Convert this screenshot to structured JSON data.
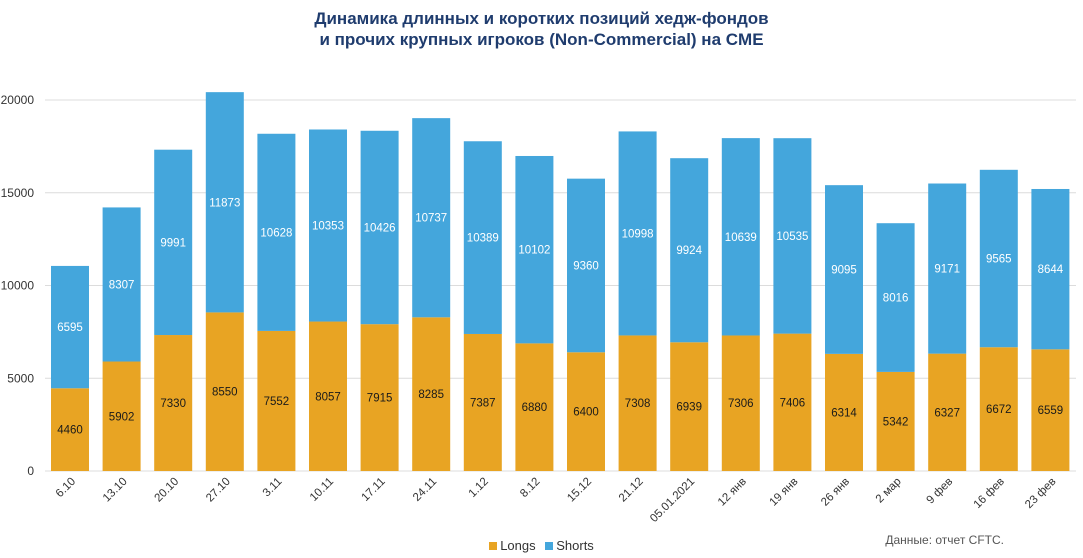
{
  "title_line1": "Динамика длинных и коротких позиций хедж-фондов",
  "title_line2": "и прочих крупных игроков (Non-Commercial) на CME",
  "source_note": "Данные: отчет CFTC.",
  "colors": {
    "longs": "#e8a423",
    "shorts": "#44a6dc",
    "grid": "#dcdcdc"
  },
  "chart_data": {
    "type": "bar",
    "stacked": true,
    "categories": [
      "6.10",
      "13.10",
      "20.10",
      "27.10",
      "3.11",
      "10.11",
      "17.11",
      "24.11",
      "1.12",
      "8.12",
      "15.12",
      "21.12",
      "05.01.2021",
      "12 янв",
      "19 янв",
      "26 янв",
      "2 мар",
      "9 фев",
      "16 фев",
      "23 фев"
    ],
    "series": [
      {
        "name": "Longs",
        "values": [
          4460,
          5902,
          7330,
          8550,
          7552,
          8057,
          7915,
          8285,
          7387,
          6880,
          6400,
          7308,
          6939,
          7306,
          7406,
          6314,
          5342,
          6327,
          6672,
          6559
        ]
      },
      {
        "name": "Shorts",
        "values": [
          6595,
          8307,
          9991,
          11873,
          10628,
          10353,
          10426,
          10737,
          10389,
          10102,
          9360,
          10998,
          9924,
          10639,
          10535,
          9095,
          8016,
          9171,
          9565,
          8644
        ]
      }
    ],
    "yticks": [
      0,
      5000,
      10000,
      15000,
      20000
    ],
    "ylim": [
      0,
      20000
    ],
    "grid": true,
    "legend_position": "bottom-center"
  }
}
